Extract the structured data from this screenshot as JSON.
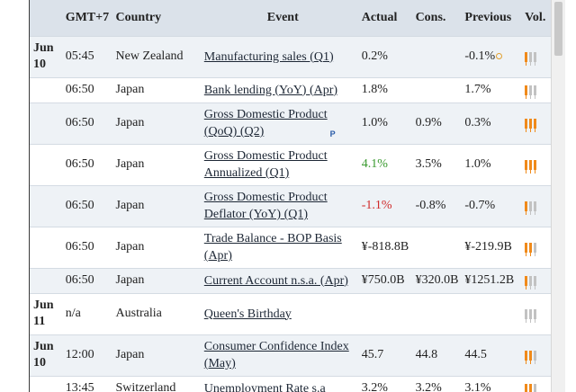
{
  "headers": {
    "time": "GMT+7",
    "country": "Country",
    "event": "Event",
    "actual": "Actual",
    "cons": "Cons.",
    "previous": "Previous",
    "vol": "Vol."
  },
  "colors": {
    "high_vol": "#f08a1a",
    "low_vol": "#c2c2c2",
    "positive": "#3a9a2f",
    "negative": "#d02b2b"
  },
  "rows": [
    {
      "date_top": "Jun",
      "date_bottom": "10",
      "time": "05:45",
      "country": "New Zealand",
      "event_l1": "Manufacturing sales (Q1)",
      "event_l2": "",
      "actual": "0.2%",
      "actual_style": "",
      "cons": "",
      "previous": "-0.1%",
      "prev_revised": true,
      "prelim": false,
      "volatility": 1
    },
    {
      "date_top": "",
      "date_bottom": "",
      "time": "06:50",
      "country": "Japan",
      "event_l1": "Bank lending (YoY) (Apr)",
      "event_l2": "",
      "actual": "1.8%",
      "actual_style": "",
      "cons": "",
      "previous": "1.7%",
      "prev_revised": false,
      "prelim": false,
      "volatility": 1
    },
    {
      "date_top": "",
      "date_bottom": "",
      "time": "06:50",
      "country": "Japan",
      "event_l1": "Gross Domestic Product",
      "event_l2": "(QoQ) (Q2)",
      "actual": "1.0%",
      "actual_style": "",
      "cons": "0.9%",
      "previous": "0.3%",
      "prev_revised": false,
      "prelim": true,
      "prelim_label": "P",
      "volatility": 3
    },
    {
      "date_top": "",
      "date_bottom": "",
      "time": "06:50",
      "country": "Japan",
      "event_l1": "Gross Domestic Product",
      "event_l2": "Annualized (Q1)",
      "actual": "4.1%",
      "actual_style": "green",
      "cons": "3.5%",
      "previous": "1.0%",
      "prev_revised": false,
      "prelim": false,
      "volatility": 3
    },
    {
      "date_top": "",
      "date_bottom": "",
      "time": "06:50",
      "country": "Japan",
      "event_l1": "Gross Domestic Product",
      "event_l2": "Deflator (YoY) (Q1)",
      "actual": "-1.1%",
      "actual_style": "red",
      "cons": "-0.8%",
      "previous": "-0.7%",
      "prev_revised": false,
      "prelim": false,
      "volatility": 1
    },
    {
      "date_top": "",
      "date_bottom": "",
      "time": "06:50",
      "country": "Japan",
      "event_l1": "Trade Balance - BOP Basis",
      "event_l2": "(Apr)",
      "actual": "¥-818.8B",
      "actual_style": "",
      "cons": "",
      "previous": "¥-219.9B",
      "prev_revised": false,
      "prelim": false,
      "volatility": 2
    },
    {
      "date_top": "",
      "date_bottom": "",
      "time": "06:50",
      "country": "Japan",
      "event_l1": "Current Account n.s.a. (Apr)",
      "event_l2": "",
      "actual": "¥750.0B",
      "actual_style": "",
      "cons": "¥320.0B",
      "previous": "¥1251.2B",
      "prev_revised": false,
      "prelim": false,
      "volatility": 1
    },
    {
      "date_top": "Jun",
      "date_bottom": "11",
      "time": "n/a",
      "country": "Australia",
      "event_l1": "Queen's Birthday",
      "event_l2": "",
      "actual": "",
      "actual_style": "",
      "cons": "",
      "previous": "",
      "prev_revised": false,
      "prelim": false,
      "volatility": 0
    },
    {
      "date_top": "Jun",
      "date_bottom": "10",
      "time": "12:00",
      "country": "Japan",
      "event_l1": "Consumer Confidence Index",
      "event_l2": "(May)",
      "actual": "45.7",
      "actual_style": "",
      "cons": "44.8",
      "previous": "44.5",
      "prev_revised": false,
      "prelim": false,
      "volatility": 2
    },
    {
      "date_top": "",
      "date_bottom": "",
      "time": "13:45",
      "country": "Switzerland",
      "event_l1": "Unemployment Rate s.a",
      "event_l2": "",
      "actual": "3.2%",
      "actual_style": "",
      "cons": "3.2%",
      "previous": "3.1%",
      "prev_revised": false,
      "prelim": false,
      "volatility": 2
    }
  ]
}
